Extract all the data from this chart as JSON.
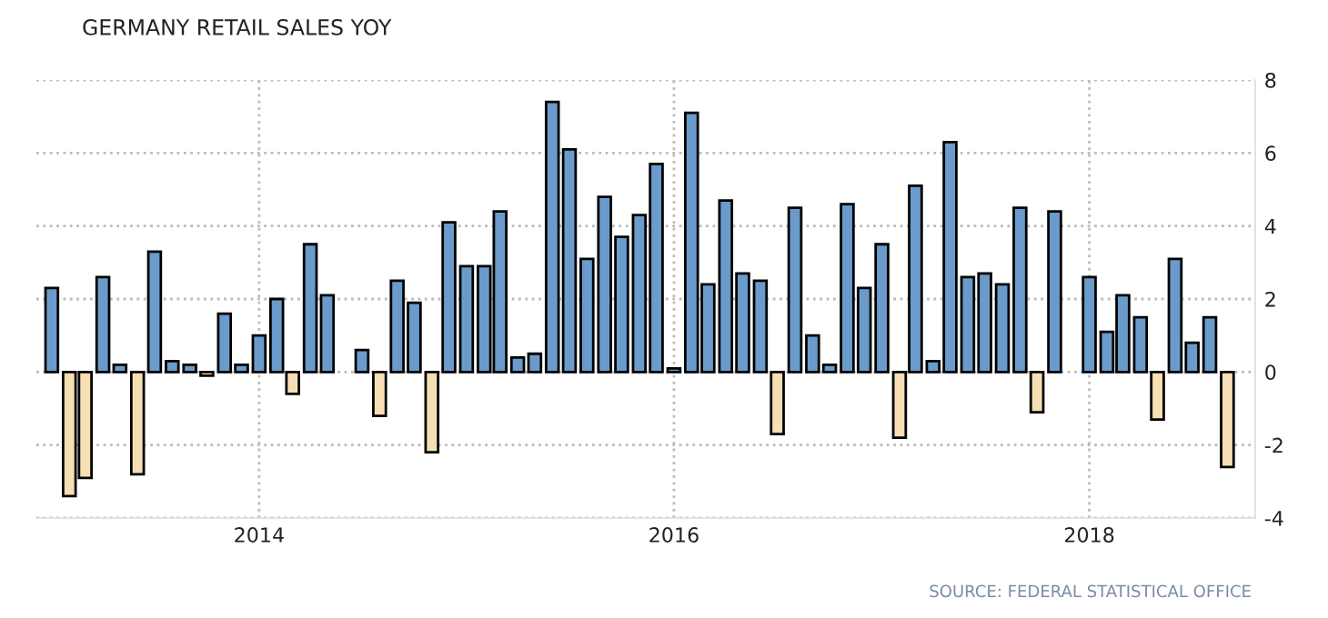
{
  "chart_data": {
    "type": "bar",
    "title": "GERMANY RETAIL SALES YOY",
    "x": [
      "2013-01",
      "2013-02",
      "2013-03",
      "2013-04",
      "2013-05",
      "2013-06",
      "2013-07",
      "2013-08",
      "2013-09",
      "2013-10",
      "2013-11",
      "2013-12",
      "2014-01",
      "2014-02",
      "2014-03",
      "2014-04",
      "2014-05",
      "2014-06",
      "2014-07",
      "2014-08",
      "2014-09",
      "2014-10",
      "2014-11",
      "2014-12",
      "2015-01",
      "2015-02",
      "2015-03",
      "2015-04",
      "2015-05",
      "2015-06",
      "2015-07",
      "2015-08",
      "2015-09",
      "2015-10",
      "2015-11",
      "2015-12",
      "2016-01",
      "2016-02",
      "2016-03",
      "2016-04",
      "2016-05",
      "2016-06",
      "2016-07",
      "2016-08",
      "2016-09",
      "2016-10",
      "2016-11",
      "2016-12",
      "2017-01",
      "2017-02",
      "2017-03",
      "2017-04",
      "2017-05",
      "2017-06",
      "2017-07",
      "2017-08",
      "2017-09",
      "2017-10",
      "2017-11",
      "2017-12",
      "2018-01",
      "2018-02",
      "2018-03",
      "2018-04",
      "2018-05",
      "2018-06",
      "2018-07",
      "2018-08",
      "2018-09"
    ],
    "values": [
      2.3,
      -3.4,
      -2.9,
      2.6,
      0.2,
      -2.8,
      3.3,
      0.3,
      0.2,
      -0.1,
      1.6,
      0.2,
      1.0,
      2.0,
      -0.6,
      3.5,
      2.1,
      null,
      0.6,
      -1.2,
      2.5,
      1.9,
      -2.2,
      4.1,
      2.9,
      2.9,
      4.4,
      0.4,
      0.5,
      7.4,
      6.1,
      3.1,
      4.8,
      3.7,
      4.3,
      5.7,
      0.1,
      7.1,
      2.4,
      4.7,
      2.7,
      2.5,
      -1.7,
      4.5,
      1.0,
      0.2,
      4.6,
      2.3,
      3.5,
      -1.8,
      5.1,
      0.3,
      6.3,
      2.6,
      2.7,
      2.4,
      4.5,
      -1.1,
      4.4,
      null,
      2.6,
      1.1,
      2.1,
      1.5,
      -1.3,
      3.1,
      0.8,
      1.5,
      -2.6
    ],
    "colors": [
      "#6b9bcb",
      "#f6dfb5",
      "#f6dfb5",
      "#6b9bcb",
      "#6b9bcb",
      "#f6dfb5",
      "#6b9bcb",
      "#6b9bcb",
      "#6b9bcb",
      "#f6dfb5",
      "#6b9bcb",
      "#6b9bcb",
      "#6b9bcb",
      "#6b9bcb",
      "#f6dfb5",
      "#6b9bcb",
      "#6b9bcb",
      "#6b9bcb",
      "#6b9bcb",
      "#f6dfb5",
      "#6b9bcb",
      "#6b9bcb",
      "#f6dfb5",
      "#6b9bcb",
      "#6b9bcb",
      "#6b9bcb",
      "#6b9bcb",
      "#6b9bcb",
      "#6b9bcb",
      "#6b9bcb",
      "#6b9bcb",
      "#6b9bcb",
      "#6b9bcb",
      "#6b9bcb",
      "#6b9bcb",
      "#6b9bcb",
      "#6b9bcb",
      "#6b9bcb",
      "#6b9bcb",
      "#6b9bcb",
      "#6b9bcb",
      "#6b9bcb",
      "#f6dfb5",
      "#6b9bcb",
      "#6b9bcb",
      "#6b9bcb",
      "#6b9bcb",
      "#6b9bcb",
      "#6b9bcb",
      "#f6dfb5",
      "#6b9bcb",
      "#6b9bcb",
      "#6b9bcb",
      "#6b9bcb",
      "#6b9bcb",
      "#6b9bcb",
      "#6b9bcb",
      "#f6dfb5",
      "#6b9bcb",
      "#6b9bcb",
      "#6b9bcb",
      "#6b9bcb",
      "#6b9bcb",
      "#6b9bcb",
      "#f6dfb5",
      "#6b9bcb",
      "#6b9bcb",
      "#6b9bcb",
      "#f6dfb5"
    ],
    "xlim": [
      "2012-12-05",
      "2018-10-20"
    ],
    "xticks": [
      {
        "value": "2014-01-01",
        "label": "2014"
      },
      {
        "value": "2016-01-01",
        "label": "2016"
      },
      {
        "value": "2018-01-01",
        "label": "2018"
      }
    ],
    "ylim": [
      -4,
      8
    ],
    "yticks": [
      -4,
      -2,
      0,
      2,
      4,
      6,
      8
    ],
    "grid": true,
    "annotations": [
      "SOURCE: FEDERAL STATISTICAL OFFICE"
    ]
  }
}
